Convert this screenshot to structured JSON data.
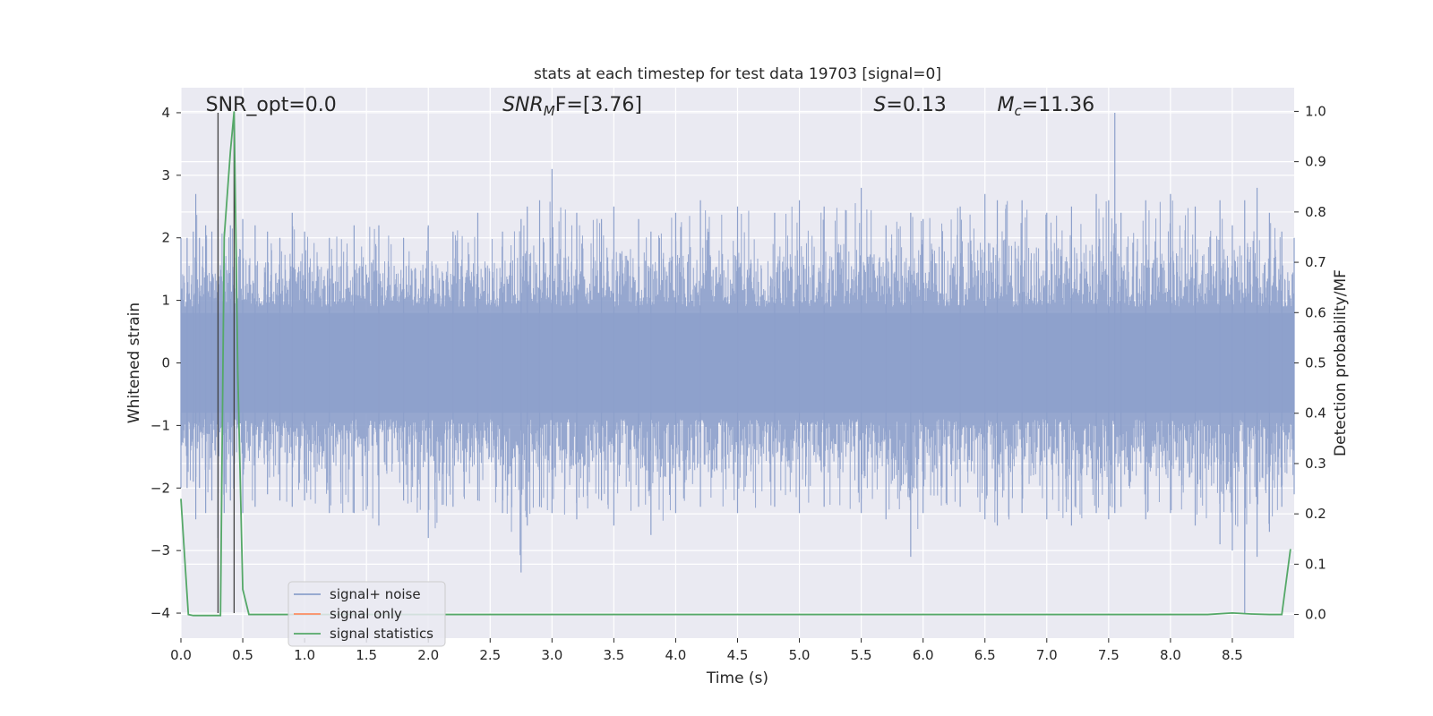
{
  "chart_data": {
    "type": "line",
    "title": "stats at each timestep for test data 19703 [signal=0]",
    "xlabel": "Time (s)",
    "ylabel": "Whitened strain",
    "y2label": "Detection probability/MF",
    "xlim": [
      0,
      9.0
    ],
    "ylim": [
      -4.4,
      4.4
    ],
    "y2lim": [
      -0.047,
      1.047
    ],
    "x_ticks": [
      "0.0",
      "0.5",
      "1.0",
      "1.5",
      "2.0",
      "2.5",
      "3.0",
      "3.5",
      "4.0",
      "4.5",
      "5.0",
      "5.5",
      "6.0",
      "6.5",
      "7.0",
      "7.5",
      "8.0",
      "8.5"
    ],
    "x_tick_values": [
      0,
      0.5,
      1,
      1.5,
      2,
      2.5,
      3,
      3.5,
      4,
      4.5,
      5,
      5.5,
      6,
      6.5,
      7,
      7.5,
      8,
      8.5
    ],
    "y_ticks": [
      "−4",
      "−3",
      "−2",
      "−1",
      "0",
      "1",
      "2",
      "3",
      "4"
    ],
    "y_tick_values": [
      -4,
      -3,
      -2,
      -1,
      0,
      1,
      2,
      3,
      4
    ],
    "y2_ticks": [
      "0.0",
      "0.1",
      "0.2",
      "0.3",
      "0.4",
      "0.5",
      "0.6",
      "0.7",
      "0.8",
      "0.9",
      "1.0"
    ],
    "y2_tick_values": [
      0,
      0.1,
      0.2,
      0.3,
      0.4,
      0.5,
      0.6,
      0.7,
      0.8,
      0.9,
      1.0
    ],
    "grid": true,
    "legend_position": "lower-left",
    "annotations": [
      {
        "text": "SNR_opt=0.0",
        "x": 0.2
      },
      {
        "html": "SNR",
        "sub": "M",
        "suffix": "F=[3.76]",
        "x": 2.6
      },
      {
        "html": "S",
        "sub": "",
        "suffix": "=0.13",
        "x": 5.6
      },
      {
        "html": "M",
        "sub": "c",
        "suffix": "=11.36",
        "x": 6.6
      }
    ],
    "series": [
      {
        "name": "signal+ noise",
        "color": "#8da0cb",
        "axis": "left",
        "envelope": {
          "x": [
            0.0,
            0.05,
            0.1,
            0.12,
            0.15,
            0.2,
            0.25,
            0.3,
            0.35,
            0.4,
            0.5,
            0.6,
            0.7,
            0.8,
            0.9,
            1.0,
            1.2,
            1.4,
            1.6,
            1.8,
            2.0,
            2.2,
            2.4,
            2.6,
            2.75,
            2.8,
            2.9,
            3.0,
            3.2,
            3.4,
            3.5,
            3.7,
            3.8,
            4.0,
            4.2,
            4.5,
            4.8,
            5.0,
            5.2,
            5.5,
            5.7,
            5.9,
            6.0,
            6.3,
            6.5,
            6.6,
            6.8,
            7.0,
            7.2,
            7.4,
            7.5,
            7.55,
            7.6,
            7.8,
            8.0,
            8.2,
            8.4,
            8.5,
            8.6,
            8.7,
            8.8,
            8.9,
            9.0
          ],
          "upper": [
            2.0,
            2.0,
            2.1,
            2.7,
            2.0,
            2.2,
            2.1,
            2.3,
            2.1,
            2.2,
            2.3,
            2.2,
            2.1,
            2.0,
            2.4,
            2.1,
            2.0,
            2.2,
            2.2,
            2.0,
            2.2,
            2.1,
            2.4,
            2.1,
            2.3,
            2.5,
            2.6,
            3.1,
            2.4,
            2.3,
            2.5,
            2.3,
            2.1,
            2.4,
            2.6,
            2.5,
            2.4,
            2.6,
            2.5,
            2.8,
            2.2,
            2.4,
            2.3,
            2.5,
            2.7,
            2.6,
            2.6,
            2.4,
            2.5,
            2.7,
            2.6,
            4.0,
            2.4,
            2.6,
            2.7,
            2.5,
            2.6,
            2.2,
            2.6,
            2.8,
            2.4,
            2.1,
            2.0
          ],
          "lower": [
            -2.0,
            -2.0,
            -1.9,
            -2.5,
            -2.0,
            -2.4,
            -2.2,
            -2.8,
            -2.4,
            -2.2,
            -2.4,
            -2.3,
            -2.1,
            -2.2,
            -2.3,
            -2.2,
            -2.4,
            -2.4,
            -2.6,
            -2.2,
            -2.8,
            -2.3,
            -2.2,
            -2.4,
            -3.35,
            -2.6,
            -2.3,
            -2.4,
            -2.5,
            -2.2,
            -2.6,
            -2.3,
            -2.75,
            -2.4,
            -2.3,
            -2.4,
            -2.3,
            -2.4,
            -2.3,
            -2.4,
            -2.5,
            -3.1,
            -2.4,
            -2.3,
            -2.5,
            -2.6,
            -2.4,
            -2.5,
            -2.6,
            -2.4,
            -2.5,
            -2.4,
            -2.3,
            -2.5,
            -2.4,
            -2.6,
            -2.9,
            -3.0,
            -4.0,
            -3.1,
            -2.7,
            -2.3,
            -2.1
          ]
        }
      },
      {
        "name": "signal only",
        "color": "#fc8d62",
        "axis": "left",
        "x": [],
        "y": []
      },
      {
        "name": "signal statistics",
        "color": "#55a868",
        "axis": "right",
        "x": [
          0.0,
          0.06,
          0.1,
          0.15,
          0.2,
          0.25,
          0.3,
          0.32,
          0.35,
          0.4,
          0.43,
          0.46,
          0.5,
          0.55,
          0.6,
          1.0,
          2.0,
          3.0,
          4.0,
          5.0,
          6.0,
          7.0,
          8.0,
          8.3,
          8.5,
          8.65,
          8.8,
          8.9,
          8.97
        ],
        "y": [
          0.23,
          0.0,
          -0.002,
          -0.002,
          -0.002,
          -0.002,
          -0.002,
          -0.002,
          0.75,
          0.92,
          1.0,
          0.48,
          0.05,
          0.0,
          0.0,
          0.0,
          0.0,
          0.0,
          0.0,
          0.0,
          0.0,
          0.0,
          0.0,
          0.0,
          0.003,
          0.001,
          0.0,
          0.0,
          0.13
        ]
      },
      {
        "name": "",
        "color": "#404040",
        "axis": "left",
        "type": "vlines",
        "x": [
          0.3,
          0.43
        ]
      }
    ]
  }
}
